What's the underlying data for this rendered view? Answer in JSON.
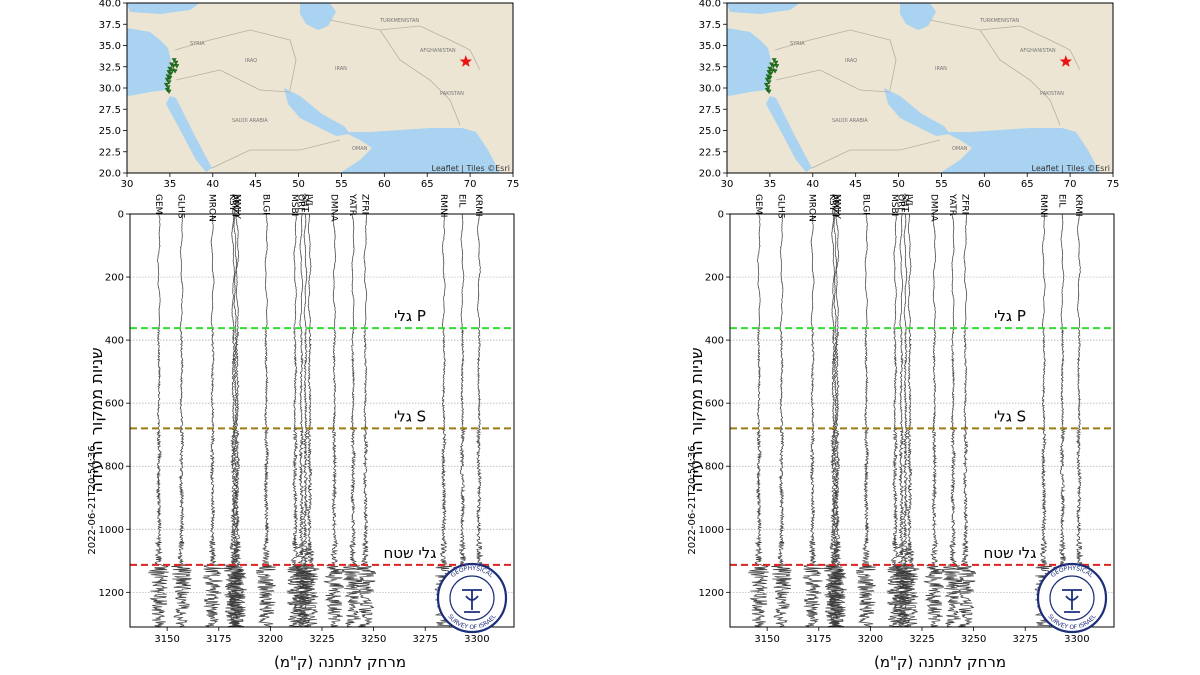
{
  "colors": {
    "land": "#ece5d3",
    "water": "#a9d3f0",
    "p_wave": "#33dd33",
    "s_wave": "#9a7d12",
    "surface_wave": "#dd2222",
    "trace": "#3c3c3c",
    "epicenter": "#ee1111",
    "station": "#1f7a1f"
  },
  "map": {
    "attribution": "Leaflet | Tiles ©Esri",
    "x_ticks": [
      "30",
      "35",
      "40",
      "45",
      "50",
      "55",
      "60",
      "65",
      "70",
      "75"
    ],
    "y_ticks": [
      "40.0",
      "37.5",
      "35.0",
      "32.5",
      "30.0",
      "27.5",
      "25.0",
      "22.5",
      "20.0"
    ],
    "xlim": [
      30,
      75
    ],
    "ylim": [
      20,
      40
    ],
    "epicenter": {
      "lon": 69.5,
      "lat": 33.1,
      "icon": "star-icon"
    },
    "labels": [
      "SAUDI ARABIA",
      "IRAN",
      "IRAQ",
      "AFGHANISTAN",
      "PAKISTAN",
      "OMAN",
      "TURKMENISTAN",
      "SYRIA"
    ],
    "stations": [
      {
        "lon": 35.5,
        "lat": 33.3
      },
      {
        "lon": 35.7,
        "lat": 33.0
      },
      {
        "lon": 35.2,
        "lat": 32.8
      },
      {
        "lon": 35.4,
        "lat": 32.6
      },
      {
        "lon": 35.0,
        "lat": 32.3
      },
      {
        "lon": 35.3,
        "lat": 32.1
      },
      {
        "lon": 34.9,
        "lat": 31.9
      },
      {
        "lon": 35.1,
        "lat": 31.7
      },
      {
        "lon": 34.8,
        "lat": 31.4
      },
      {
        "lon": 35.0,
        "lat": 31.2
      },
      {
        "lon": 34.7,
        "lat": 31.0
      },
      {
        "lon": 34.9,
        "lat": 30.7
      },
      {
        "lon": 34.6,
        "lat": 30.4
      },
      {
        "lon": 34.8,
        "lat": 30.1
      },
      {
        "lon": 34.7,
        "lat": 29.8
      },
      {
        "lon": 35.6,
        "lat": 32.0
      },
      {
        "lon": 35.8,
        "lat": 32.6
      },
      {
        "lon": 34.9,
        "lat": 29.6
      }
    ]
  },
  "chart_data": {
    "type": "line",
    "ylabel": "שניות ממקור הרעידה",
    "xlabel": "מרחק לתחנה (ק\"מ)",
    "origin_time": "2022-06-21T20:54:36",
    "xlim": [
      3132,
      3318
    ],
    "ylim": [
      1310,
      0
    ],
    "x_ticks": [
      3150,
      3175,
      3200,
      3225,
      3250,
      3275,
      3300
    ],
    "y_ticks": [
      0,
      200,
      400,
      600,
      800,
      1000,
      1200
    ],
    "stations": [
      {
        "name": "GEM",
        "distance": 3146
      },
      {
        "name": "GLHS",
        "distance": 3157
      },
      {
        "name": "MRON",
        "distance": 3172
      },
      {
        "name": "KSY",
        "distance": 3182
      },
      {
        "name": "AMZI",
        "distance": 3183
      },
      {
        "name": "MMLY",
        "distance": 3184
      },
      {
        "name": "BLGI",
        "distance": 3198
      },
      {
        "name": "MSBI",
        "distance": 3212
      },
      {
        "name": "ORFI",
        "distance": 3215
      },
      {
        "name": "SHT",
        "distance": 3217
      },
      {
        "name": "JVI",
        "distance": 3219
      },
      {
        "name": "DMNA",
        "distance": 3231
      },
      {
        "name": "YATR",
        "distance": 3240
      },
      {
        "name": "ZFRI",
        "distance": 3246
      },
      {
        "name": "RMNI",
        "distance": 3284
      },
      {
        "name": "EIL",
        "distance": 3293
      },
      {
        "name": "KRMI",
        "distance": 3301
      }
    ],
    "arrivals": [
      {
        "label": "גלי P",
        "time": 362,
        "color": "#33dd33"
      },
      {
        "label": "גלי S",
        "time": 680,
        "color": "#9a7d12"
      },
      {
        "label": "גלי שטח",
        "time": 1113,
        "color": "#dd2222"
      }
    ]
  },
  "logo": {
    "top_text": "GEOPHYSICAL",
    "bottom_text": "SURVEY OF ISRAEL",
    "icon": "geological-survey-seal-icon"
  }
}
